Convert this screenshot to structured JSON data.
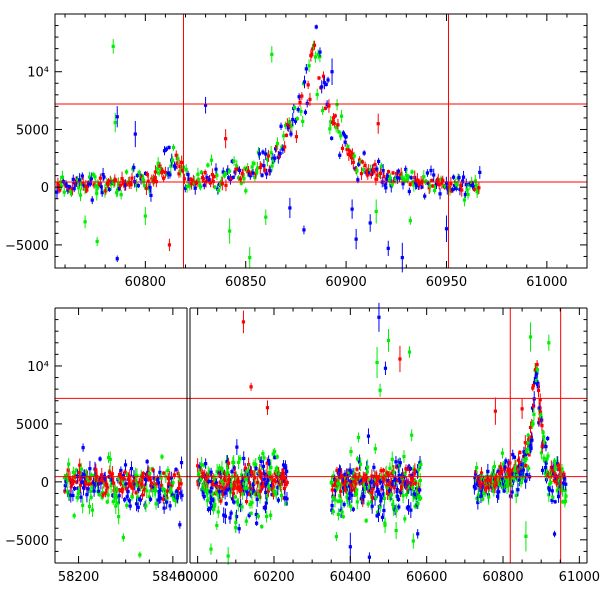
{
  "chart_data": [
    {
      "type": "scatter",
      "panel": "top",
      "title": "",
      "xlabel": "",
      "ylabel": "",
      "xlim": [
        60755,
        61020
      ],
      "ylim": [
        -7000,
        15000
      ],
      "x_ticks": [
        60800,
        60850,
        60900,
        60950,
        61000
      ],
      "x_tick_labels": [
        "60800",
        "60850",
        "60900",
        "60950",
        "61000"
      ],
      "y_ticks": [
        -5000,
        0,
        5000,
        10000
      ],
      "y_tick_labels": [
        "−5000",
        "0",
        "5000",
        "10⁴"
      ],
      "hlines": [
        7200,
        450
      ],
      "vlines": [
        60819,
        60951
      ],
      "reference_line_color": "#ff0000",
      "series": [
        {
          "name": "green",
          "color": "#00ee00",
          "envelope": "data"
        },
        {
          "name": "blue",
          "color": "#0000ff",
          "envelope": "data"
        },
        {
          "name": "red",
          "color": "#ff0000",
          "envelope": "data"
        }
      ],
      "envelope": {
        "x": [
          60755,
          60780,
          60800,
          60810,
          60814,
          60820,
          60840,
          60855,
          60865,
          60875,
          60880,
          60885,
          60890,
          60895,
          60905,
          60920,
          60940,
          60960,
          60967
        ],
        "y": [
          150,
          300,
          500,
          1500,
          3000,
          600,
          800,
          1500,
          2800,
          5800,
          9000,
          11000,
          7500,
          4800,
          2000,
          900,
          300,
          50,
          -100
        ]
      },
      "outliers": [
        {
          "x": 60784,
          "y": 12200,
          "color": "#00ee00"
        },
        {
          "x": 60785,
          "y": 5600,
          "color": "#00ee00"
        },
        {
          "x": 60786,
          "y": 6100,
          "color": "#0000ff"
        },
        {
          "x": 60786,
          "y": -6200,
          "color": "#0000ff"
        },
        {
          "x": 60795,
          "y": 4600,
          "color": "#0000ff"
        },
        {
          "x": 60830,
          "y": 7100,
          "color": "#0000ff"
        },
        {
          "x": 60840,
          "y": 4200,
          "color": "#ff0000"
        },
        {
          "x": 60812,
          "y": -5000,
          "color": "#ff0000"
        },
        {
          "x": 60842,
          "y": -3800,
          "color": "#00ee00"
        },
        {
          "x": 60852,
          "y": -6100,
          "color": "#00ee00"
        },
        {
          "x": 60863,
          "y": 11500,
          "color": "#00ee00"
        },
        {
          "x": 60872,
          "y": -1800,
          "color": "#0000ff"
        },
        {
          "x": 60879,
          "y": -3700,
          "color": "#0000ff"
        },
        {
          "x": 60887,
          "y": 11700,
          "color": "#0000ff"
        },
        {
          "x": 60893,
          "y": 10000,
          "color": "#0000ff"
        },
        {
          "x": 60903,
          "y": -1900,
          "color": "#0000ff"
        },
        {
          "x": 60905,
          "y": -4500,
          "color": "#0000ff"
        },
        {
          "x": 60912,
          "y": -3100,
          "color": "#0000ff"
        },
        {
          "x": 60916,
          "y": 5500,
          "color": "#ff0000"
        },
        {
          "x": 60921,
          "y": -5300,
          "color": "#0000ff"
        },
        {
          "x": 60928,
          "y": -6100,
          "color": "#0000ff"
        },
        {
          "x": 60950,
          "y": -3600,
          "color": "#0000ff"
        },
        {
          "x": 60932,
          "y": -2900,
          "color": "#00ee00"
        },
        {
          "x": 60915,
          "y": -2100,
          "color": "#00ee00"
        },
        {
          "x": 60800,
          "y": -2500,
          "color": "#00ee00"
        },
        {
          "x": 60770,
          "y": -3000,
          "color": "#00ee00"
        },
        {
          "x": 60776,
          "y": -4700,
          "color": "#00ee00"
        },
        {
          "x": 60860,
          "y": -2600,
          "color": "#00ee00"
        }
      ]
    },
    {
      "type": "scatter",
      "panel": "bottom",
      "title": "",
      "xlabel": "",
      "ylabel": "",
      "broken_x_axis": true,
      "segments": [
        {
          "xlim": [
            58150,
            58430
          ],
          "x_ticks": [
            58200,
            58400
          ],
          "x_tick_labels": [
            "58200",
            "58400"
          ]
        },
        {
          "xlim": [
            59980,
            61020
          ],
          "x_ticks": [
            60000,
            60200,
            60400,
            60600,
            60800,
            61000
          ],
          "x_tick_labels": [
            "60000",
            "60200",
            "60400",
            "60600",
            "60800",
            "61000"
          ]
        }
      ],
      "ylim": [
        -7000,
        15000
      ],
      "y_ticks": [
        -5000,
        0,
        5000,
        10000
      ],
      "y_tick_labels": [
        "−5000",
        "0",
        "5000",
        "10⁴"
      ],
      "hlines": [
        7200,
        450
      ],
      "vlines": [
        60819,
        60951
      ],
      "reference_line_color": "#ff0000",
      "series": [
        {
          "name": "green",
          "color": "#00ee00"
        },
        {
          "name": "blue",
          "color": "#0000ff"
        },
        {
          "name": "red",
          "color": "#ff0000"
        }
      ],
      "clusters": [
        {
          "x_start": 58170,
          "x_end": 58420,
          "amplitude": 1200
        },
        {
          "x_start": 60000,
          "x_end": 60235,
          "amplitude": 1500
        },
        {
          "x_start": 60350,
          "x_end": 60585,
          "amplitude": 1300
        },
        {
          "x_start": 60725,
          "x_end": 60965,
          "amplitude": 900
        }
      ],
      "peak": {
        "x": [
          60725,
          60780,
          60820,
          60850,
          60870,
          60880,
          60887,
          60895,
          60910,
          60930,
          60965
        ],
        "y": [
          0,
          200,
          500,
          1500,
          3500,
          6500,
          11000,
          6000,
          2000,
          600,
          0
        ]
      },
      "outliers": [
        {
          "x": 60120,
          "y": 13800,
          "color": "#ff0000"
        },
        {
          "x": 60140,
          "y": 8200,
          "color": "#ff0000"
        },
        {
          "x": 60183,
          "y": 6400,
          "color": "#ff0000"
        },
        {
          "x": 60475,
          "y": 14200,
          "color": "#0000ff"
        },
        {
          "x": 60500,
          "y": 12200,
          "color": "#00ee00"
        },
        {
          "x": 60470,
          "y": 10300,
          "color": "#00ee00"
        },
        {
          "x": 60530,
          "y": 10600,
          "color": "#ff0000"
        },
        {
          "x": 60555,
          "y": 11200,
          "color": "#00ee00"
        },
        {
          "x": 60492,
          "y": 9800,
          "color": "#0000ff"
        },
        {
          "x": 60478,
          "y": 7900,
          "color": "#00ee00"
        },
        {
          "x": 60850,
          "y": 6300,
          "color": "#ff0000"
        },
        {
          "x": 60872,
          "y": 12500,
          "color": "#00ee00"
        },
        {
          "x": 60920,
          "y": 12000,
          "color": "#00ee00"
        },
        {
          "x": 60780,
          "y": 6100,
          "color": "#ff0000"
        },
        {
          "x": 58285,
          "y": -3000,
          "color": "#00ee00"
        },
        {
          "x": 58295,
          "y": -4800,
          "color": "#00ee00"
        },
        {
          "x": 58330,
          "y": -6300,
          "color": "#00ee00"
        },
        {
          "x": 60035,
          "y": -5800,
          "color": "#00ee00"
        },
        {
          "x": 60100,
          "y": -3500,
          "color": "#00ee00"
        },
        {
          "x": 60080,
          "y": -6400,
          "color": "#00ee00"
        },
        {
          "x": 60400,
          "y": -5600,
          "color": "#0000ff"
        },
        {
          "x": 60450,
          "y": -6500,
          "color": "#0000ff"
        },
        {
          "x": 60520,
          "y": -4200,
          "color": "#00ee00"
        },
        {
          "x": 60565,
          "y": -5100,
          "color": "#00ee00"
        },
        {
          "x": 60860,
          "y": -4700,
          "color": "#00ee00"
        },
        {
          "x": 60935,
          "y": -4500,
          "color": "#0000ff"
        }
      ]
    }
  ]
}
